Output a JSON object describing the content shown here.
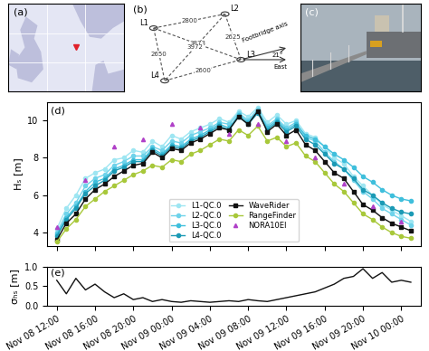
{
  "panels": {
    "a": "(a)",
    "b": "(b)",
    "c": "(c)"
  },
  "diagram": {
    "nodes": {
      "L1": "L1",
      "L2": "L2",
      "L3": "L3",
      "L4": "L4"
    },
    "edges": [
      {
        "from": "L1",
        "to": "L2",
        "label": "2800"
      },
      {
        "from": "L2",
        "to": "L3",
        "label": "2625"
      },
      {
        "from": "L1",
        "to": "L4",
        "label": "2650"
      },
      {
        "from": "L4",
        "to": "L3",
        "label": "2600"
      },
      {
        "from": "L1",
        "to": "L3",
        "label": "3873"
      },
      {
        "from": "L2",
        "to": "L4",
        "label": "3972"
      }
    ],
    "axis_label": "Footbridge axis",
    "angle_label": "21°",
    "east_label": "East"
  },
  "chart_data": [
    {
      "type": "line",
      "annotations": [
        "(d)"
      ],
      "y_label": "Hₛ [m]",
      "x": [
        0,
        1,
        2,
        3,
        4,
        5,
        6,
        7,
        8,
        9,
        10,
        11,
        12,
        13,
        14,
        15,
        16,
        17,
        18,
        19,
        20,
        21,
        22,
        23,
        24,
        25,
        26,
        27,
        28,
        29,
        30,
        31,
        32,
        33,
        34,
        35,
        36,
        37
      ],
      "xlim": [
        -1,
        38
      ],
      "xticks": [
        0,
        4,
        8,
        12,
        16,
        20,
        24,
        28,
        32,
        36
      ],
      "ylim": [
        3.3,
        11.0
      ],
      "yticks": [
        4,
        6,
        8,
        10
      ],
      "grid": false,
      "legend": "lower center",
      "tick_labels": "y",
      "series": [
        {
          "name": "L1-QC.0",
          "color": "#9ee6f2",
          "marker": "circle",
          "line_style": "solid",
          "values": [
            4.2,
            5.3,
            6.0,
            6.9,
            7.2,
            7.4,
            7.9,
            8.0,
            8.4,
            8.3,
            8.9,
            8.6,
            9.2,
            9.0,
            9.4,
            9.6,
            9.8,
            10.1,
            9.9,
            10.5,
            10.2,
            10.7,
            9.9,
            10.3,
            9.8,
            10.0,
            9.3,
            9.1,
            8.6,
            8.0,
            7.7,
            7.0,
            6.5,
            6.0,
            5.5,
            5.2,
            4.9,
            4.6
          ]
        },
        {
          "name": "L2-QC.0",
          "color": "#6fd3ea",
          "marker": "circle",
          "line_style": "solid",
          "values": [
            4.0,
            5.0,
            5.6,
            6.5,
            6.9,
            7.1,
            7.6,
            7.8,
            8.1,
            8.1,
            8.6,
            8.4,
            8.9,
            8.8,
            9.2,
            9.4,
            9.6,
            9.9,
            9.8,
            10.4,
            10.0,
            10.6,
            9.7,
            10.1,
            9.6,
            9.9,
            9.1,
            8.9,
            8.3,
            7.8,
            7.4,
            6.8,
            6.2,
            5.8,
            5.3,
            5.0,
            4.7,
            4.4
          ]
        },
        {
          "name": "L3-QC.0",
          "color": "#3fbfdc",
          "marker": "circle",
          "line_style": "solid",
          "values": [
            3.9,
            4.8,
            5.4,
            6.2,
            6.7,
            6.9,
            7.4,
            7.6,
            7.9,
            7.9,
            8.5,
            8.2,
            8.7,
            8.6,
            9.0,
            9.2,
            9.5,
            9.8,
            9.6,
            10.3,
            9.9,
            10.5,
            9.6,
            10.0,
            9.5,
            9.8,
            9.2,
            9.0,
            8.6,
            8.2,
            7.9,
            7.5,
            7.0,
            6.7,
            6.3,
            6.0,
            5.8,
            5.7
          ]
        },
        {
          "name": "L4-QC.0",
          "color": "#1b9ab5",
          "marker": "circle",
          "line_style": "solid",
          "values": [
            3.8,
            4.7,
            5.3,
            6.1,
            6.5,
            6.8,
            7.3,
            7.5,
            7.8,
            7.8,
            8.4,
            8.1,
            8.6,
            8.5,
            8.9,
            9.1,
            9.4,
            9.7,
            9.5,
            10.2,
            9.8,
            10.4,
            9.5,
            9.9,
            9.4,
            9.7,
            9.0,
            8.7,
            8.2,
            7.7,
            7.4,
            6.9,
            6.3,
            6.0,
            5.6,
            5.3,
            5.1,
            5.0
          ]
        },
        {
          "name": "WaveRider",
          "color": "#111111",
          "marker": "square",
          "line_style": "solid",
          "values": [
            3.6,
            4.5,
            5.0,
            5.8,
            6.3,
            6.6,
            7.0,
            7.3,
            7.6,
            7.7,
            8.3,
            8.0,
            8.5,
            8.4,
            8.8,
            9.0,
            9.3,
            9.6,
            9.5,
            10.2,
            9.8,
            10.5,
            9.4,
            9.8,
            9.2,
            9.5,
            8.7,
            8.4,
            7.8,
            7.2,
            6.9,
            6.2,
            5.5,
            5.2,
            4.8,
            4.5,
            4.3,
            4.1
          ]
        },
        {
          "name": "RangeFinder",
          "color": "#a8c83a",
          "marker": "circle",
          "line_style": "solid",
          "values": [
            3.5,
            4.2,
            4.7,
            5.4,
            5.8,
            6.2,
            6.5,
            6.8,
            7.1,
            7.3,
            7.6,
            7.5,
            7.9,
            7.8,
            8.2,
            8.4,
            8.7,
            9.0,
            8.9,
            9.5,
            9.2,
            9.7,
            8.9,
            9.1,
            8.6,
            8.8,
            8.1,
            7.8,
            7.2,
            6.6,
            6.2,
            5.6,
            5.0,
            4.7,
            4.3,
            4.0,
            3.8,
            3.7
          ]
        },
        {
          "name": "NORA10EI",
          "color": "#b040c8",
          "marker": "triangle",
          "line_style": "none",
          "x": [
            0,
            3,
            6,
            9,
            12,
            15,
            18,
            21,
            24,
            27,
            30,
            33,
            36
          ],
          "values": [
            4.3,
            6.8,
            8.6,
            9.0,
            9.8,
            9.6,
            9.3,
            9.8,
            8.9,
            8.0,
            6.6,
            5.4,
            4.6
          ]
        }
      ]
    },
    {
      "type": "line",
      "annotations": [
        "(e)"
      ],
      "y_label": "σₕₛ [m]",
      "x": [
        0,
        1,
        2,
        3,
        4,
        5,
        6,
        7,
        8,
        9,
        10,
        11,
        12,
        13,
        14,
        15,
        16,
        17,
        18,
        19,
        20,
        21,
        22,
        23,
        24,
        25,
        26,
        27,
        28,
        29,
        30,
        31,
        32,
        33,
        34,
        35,
        36,
        37
      ],
      "xlim": [
        -1,
        38
      ],
      "xticks": [
        {
          "value": 0,
          "label": "Nov 08 12:00"
        },
        {
          "value": 4,
          "label": "Nov 08 16:00"
        },
        {
          "value": 8,
          "label": "Nov 08 20:00"
        },
        {
          "value": 12,
          "label": "Nov 09 00:00"
        },
        {
          "value": 16,
          "label": "Nov 09 04:00"
        },
        {
          "value": 20,
          "label": "Nov 09 08:00"
        },
        {
          "value": 24,
          "label": "Nov 09 12:00"
        },
        {
          "value": 28,
          "label": "Nov 09 16:00"
        },
        {
          "value": 32,
          "label": "Nov 09 20:00"
        },
        {
          "value": 36,
          "label": "Nov 10 00:00"
        }
      ],
      "ylim": [
        0.0,
        1.0
      ],
      "yticks": [
        {
          "value": 0.0,
          "label": "0.0"
        },
        {
          "value": 0.5,
          "label": "0.5"
        },
        {
          "value": 1.0,
          "label": "1.0"
        }
      ],
      "grid": false,
      "series": [
        {
          "name": "σ",
          "color": "#111111",
          "line_style": "solid",
          "values": [
            0.65,
            0.3,
            0.7,
            0.4,
            0.55,
            0.35,
            0.2,
            0.3,
            0.15,
            0.2,
            0.1,
            0.15,
            0.1,
            0.08,
            0.12,
            0.1,
            0.08,
            0.1,
            0.12,
            0.1,
            0.15,
            0.12,
            0.1,
            0.15,
            0.2,
            0.25,
            0.3,
            0.35,
            0.45,
            0.55,
            0.7,
            0.75,
            0.95,
            0.7,
            0.85,
            0.6,
            0.65,
            0.6
          ]
        }
      ]
    }
  ]
}
